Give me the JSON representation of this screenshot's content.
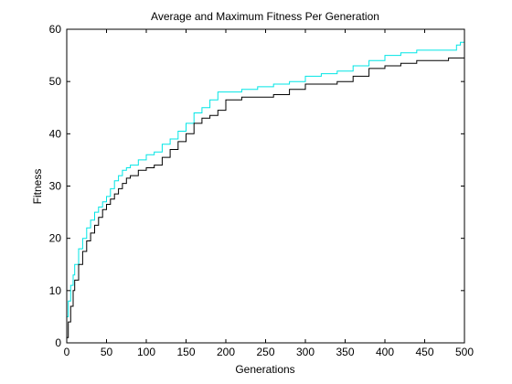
{
  "chart_data": {
    "type": "line",
    "title": "Average and Maximum Fitness Per Generation",
    "xlabel": "Generations",
    "ylabel": "Fitness",
    "xlim": [
      0,
      500
    ],
    "ylim": [
      0,
      60
    ],
    "x_ticks": [
      0,
      50,
      100,
      150,
      200,
      250,
      300,
      350,
      400,
      450,
      500
    ],
    "y_ticks": [
      0,
      10,
      20,
      30,
      40,
      50,
      60
    ],
    "grid": false,
    "legend": "none",
    "series": [
      {
        "color": "#00e5e5",
        "x": [
          0,
          2,
          5,
          8,
          10,
          15,
          20,
          25,
          30,
          35,
          40,
          45,
          50,
          55,
          60,
          65,
          70,
          75,
          80,
          90,
          100,
          110,
          120,
          130,
          140,
          150,
          160,
          170,
          180,
          190,
          200,
          220,
          240,
          260,
          280,
          300,
          320,
          340,
          360,
          380,
          400,
          420,
          440,
          460,
          480,
          490,
          495,
          500
        ],
        "y": [
          5,
          8,
          11,
          13,
          15,
          18,
          20,
          22,
          23.5,
          25,
          26,
          27,
          28,
          29.5,
          31,
          32,
          33,
          33.5,
          34,
          35,
          36,
          36.5,
          38,
          39,
          40.5,
          42,
          44,
          45,
          46.5,
          48,
          48,
          48.5,
          49,
          49.5,
          50,
          51,
          51.5,
          52,
          53,
          54,
          55,
          55.5,
          56,
          56,
          56,
          57,
          57.5,
          59
        ]
      },
      {
        "color": "#000000",
        "x": [
          0,
          2,
          5,
          8,
          10,
          15,
          20,
          25,
          30,
          35,
          40,
          45,
          50,
          55,
          60,
          65,
          70,
          75,
          80,
          90,
          100,
          110,
          120,
          130,
          140,
          150,
          160,
          170,
          180,
          190,
          200,
          210,
          220,
          240,
          260,
          280,
          300,
          320,
          340,
          360,
          380,
          400,
          420,
          440,
          460,
          480,
          490,
          500
        ],
        "y": [
          1,
          4,
          7,
          10,
          12,
          15,
          17.5,
          19.5,
          21,
          22.5,
          24,
          25.5,
          26.5,
          27.5,
          28.5,
          29.5,
          30.5,
          31.5,
          32,
          33,
          33.5,
          34,
          35.5,
          37,
          38.5,
          40,
          42,
          43,
          43.5,
          44.5,
          46.5,
          46.5,
          47,
          47,
          47.5,
          48.5,
          49.5,
          49.5,
          50,
          51,
          52.5,
          53,
          53.5,
          54,
          54,
          54.5,
          54.5,
          55
        ]
      }
    ]
  }
}
